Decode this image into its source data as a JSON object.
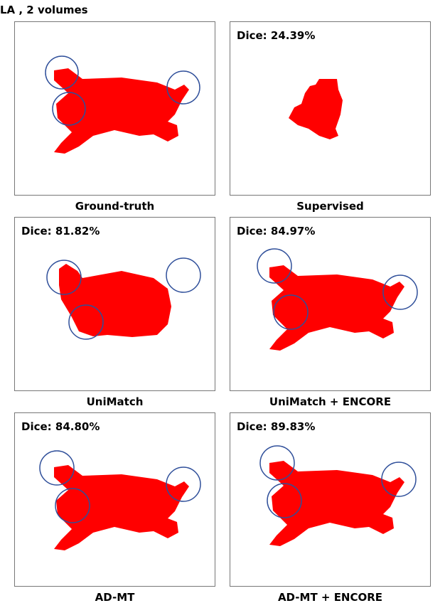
{
  "figure_title": "LA , 2 volumes",
  "panels": [
    {
      "label": "Ground-truth",
      "dice": ""
    },
    {
      "label": "Supervised",
      "dice": "Dice: 24.39%"
    },
    {
      "label": "UniMatch",
      "dice": "Dice: 81.82%"
    },
    {
      "label": "UniMatch + ENCORE",
      "dice": "Dice: 84.97%"
    },
    {
      "label": "AD-MT",
      "dice": "Dice: 84.80%"
    },
    {
      "label": "AD-MT + ENCORE",
      "dice": "Dice: 89.83%"
    }
  ],
  "colors": {
    "segmentation": "#ff0000",
    "highlight_circle": "#2f4f9a"
  }
}
